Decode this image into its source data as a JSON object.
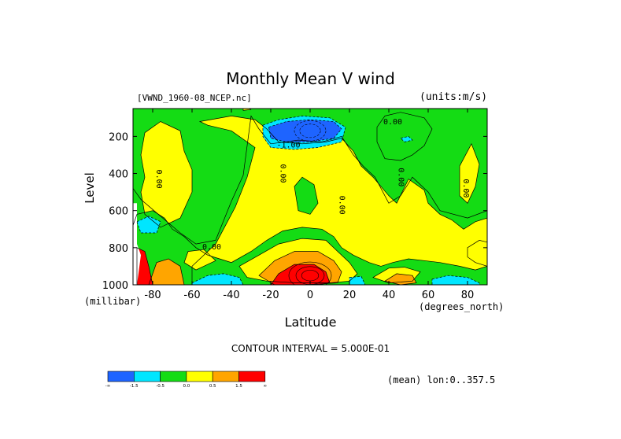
{
  "chart_data": {
    "type": "contour",
    "title": "Monthly Mean V wind",
    "dataset": "[VWND_1960-08_NCEP.nc]",
    "units": "(units:m/s)",
    "xlabel": "Latitude",
    "xunit": "(degrees_north)",
    "ylabel": "Level",
    "yunit": "(millibar)",
    "xlim": [
      -90,
      90
    ],
    "ylim": [
      1000,
      50
    ],
    "x_ticks": [
      "-80",
      "-60",
      "-40",
      "-20",
      "0",
      "20",
      "40",
      "60",
      "80"
    ],
    "x_tick_values": [
      -80,
      -60,
      -40,
      -20,
      0,
      20,
      40,
      60,
      80
    ],
    "y_ticks": [
      "200",
      "400",
      "600",
      "800",
      "1000"
    ],
    "y_tick_values": [
      200,
      400,
      600,
      800,
      1000
    ],
    "contour_interval": "CONTOUR INTERVAL = 5.000E-01",
    "mean_note": "(mean) lon:0..357.5",
    "contour_labels": [
      {
        "text": "0.00",
        "x": 42,
        "y": 135
      },
      {
        "text": "0.00",
        "x": -78,
        "y": 430
      },
      {
        "text": "0.00",
        "x": -15,
        "y": 400
      },
      {
        "text": "0.00",
        "x": 15,
        "y": 570
      },
      {
        "text": "0.00",
        "x": 45,
        "y": 420
      },
      {
        "text": "0.00",
        "x": 78,
        "y": 480
      },
      {
        "text": "0.00",
        "x": -50,
        "y": 810
      },
      {
        "text": "-1.00",
        "x": -11,
        "y": 260
      }
    ],
    "colorbar": {
      "colors": [
        "#1e64ff",
        "#00e6ff",
        "#14dc14",
        "#ffff00",
        "#ffa500",
        "#ff0000"
      ],
      "labels": [
        "-∞",
        "-1.5",
        "-0.5",
        "0.0",
        "0.5",
        "1.5",
        "∞"
      ]
    },
    "regions": [
      {
        "level": "green",
        "points": [
          [
            -90,
            50
          ],
          [
            90,
            50
          ],
          [
            90,
            600
          ],
          [
            80,
            640
          ],
          [
            66,
            600
          ],
          [
            60,
            500
          ],
          [
            52,
            420
          ],
          [
            46,
            520
          ],
          [
            40,
            560
          ],
          [
            33,
            420
          ],
          [
            27,
            360
          ],
          [
            22,
            300
          ],
          [
            16,
            200
          ],
          [
            6,
            230
          ],
          [
            -6,
            220
          ],
          [
            -20,
            240
          ],
          [
            -26,
            160
          ],
          [
            -30,
            90
          ],
          [
            -34,
            410
          ],
          [
            -40,
            550
          ],
          [
            -48,
            760
          ],
          [
            -58,
            780
          ],
          [
            -66,
            720
          ],
          [
            -76,
            630
          ],
          [
            -86,
            540
          ],
          [
            -90,
            480
          ]
        ]
      },
      {
        "level": "yellow",
        "points": [
          [
            -84,
            180
          ],
          [
            -76,
            120
          ],
          [
            -66,
            170
          ],
          [
            -64,
            280
          ],
          [
            -60,
            380
          ],
          [
            -60,
            500
          ],
          [
            -66,
            640
          ],
          [
            -76,
            690
          ],
          [
            -84,
            620
          ],
          [
            -86,
            500
          ],
          [
            -84,
            420
          ],
          [
            -86,
            300
          ]
        ]
      },
      {
        "level": "yellow",
        "points": [
          [
            -56,
            120
          ],
          [
            -40,
            90
          ],
          [
            -28,
            110
          ],
          [
            -22,
            160
          ],
          [
            -16,
            230
          ],
          [
            -4,
            240
          ],
          [
            8,
            230
          ],
          [
            16,
            210
          ],
          [
            22,
            280
          ],
          [
            26,
            360
          ],
          [
            32,
            420
          ],
          [
            40,
            520
          ],
          [
            44,
            560
          ],
          [
            50,
            430
          ],
          [
            58,
            490
          ],
          [
            60,
            560
          ],
          [
            66,
            620
          ],
          [
            72,
            650
          ],
          [
            78,
            700
          ],
          [
            84,
            660
          ],
          [
            90,
            640
          ],
          [
            90,
            1000
          ],
          [
            -60,
            1000
          ],
          [
            -60,
            900
          ],
          [
            -48,
            780
          ],
          [
            -38,
            580
          ],
          [
            -32,
            420
          ],
          [
            -28,
            260
          ],
          [
            -40,
            170
          ],
          [
            -52,
            140
          ]
        ]
      },
      {
        "level": "yellow",
        "points": [
          [
            76,
            360
          ],
          [
            82,
            240
          ],
          [
            86,
            350
          ],
          [
            84,
            470
          ],
          [
            80,
            560
          ],
          [
            76,
            520
          ]
        ]
      },
      {
        "level": "yellow",
        "points": [
          [
            -34,
            40
          ],
          [
            -30,
            55
          ],
          [
            -34,
            60
          ]
        ]
      },
      {
        "level": "green",
        "points": [
          [
            -8,
            470
          ],
          [
            -4,
            420
          ],
          [
            2,
            460
          ],
          [
            4,
            560
          ],
          [
            0,
            620
          ],
          [
            -6,
            600
          ]
        ]
      },
      {
        "level": "green",
        "points": [
          [
            38,
            90
          ],
          [
            46,
            70
          ],
          [
            58,
            100
          ],
          [
            62,
            160
          ],
          [
            58,
            250
          ],
          [
            52,
            300
          ],
          [
            46,
            330
          ],
          [
            38,
            320
          ],
          [
            34,
            230
          ],
          [
            34,
            150
          ]
        ]
      },
      {
        "level": "green",
        "points": [
          [
            -88,
            620
          ],
          [
            -80,
            600
          ],
          [
            -74,
            640
          ],
          [
            -70,
            700
          ],
          [
            -64,
            740
          ],
          [
            -58,
            800
          ],
          [
            -52,
            840
          ],
          [
            -46,
            860
          ],
          [
            -40,
            880
          ],
          [
            -30,
            820
          ],
          [
            -22,
            760
          ],
          [
            -14,
            710
          ],
          [
            -4,
            690
          ],
          [
            6,
            700
          ],
          [
            12,
            740
          ],
          [
            16,
            800
          ],
          [
            22,
            840
          ],
          [
            30,
            880
          ],
          [
            36,
            900
          ],
          [
            42,
            880
          ],
          [
            50,
            860
          ],
          [
            58,
            870
          ],
          [
            66,
            880
          ],
          [
            76,
            900
          ],
          [
            84,
            920
          ],
          [
            90,
            900
          ],
          [
            90,
            1000
          ],
          [
            -90,
            1000
          ],
          [
            -90,
            680
          ]
        ]
      },
      {
        "level": "yellow",
        "points": [
          [
            -62,
            820
          ],
          [
            -54,
            810
          ],
          [
            -48,
            870
          ],
          [
            -58,
            920
          ],
          [
            -64,
            880
          ]
        ]
      },
      {
        "level": "yellow",
        "points": [
          [
            -36,
            900
          ],
          [
            -26,
            840
          ],
          [
            -16,
            780
          ],
          [
            -4,
            750
          ],
          [
            8,
            760
          ],
          [
            14,
            820
          ],
          [
            20,
            880
          ],
          [
            24,
            940
          ],
          [
            20,
            980
          ],
          [
            10,
            990
          ],
          [
            -6,
            990
          ],
          [
            -22,
            980
          ],
          [
            -32,
            960
          ]
        ]
      },
      {
        "level": "yellow",
        "points": [
          [
            32,
            960
          ],
          [
            40,
            910
          ],
          [
            48,
            905
          ],
          [
            56,
            930
          ],
          [
            52,
            980
          ],
          [
            40,
            990
          ]
        ]
      },
      {
        "level": "yellow",
        "points": [
          [
            80,
            800
          ],
          [
            86,
            760
          ],
          [
            90,
            770
          ],
          [
            90,
            900
          ],
          [
            84,
            880
          ],
          [
            80,
            850
          ]
        ]
      },
      {
        "level": "orange",
        "points": [
          [
            -26,
            950
          ],
          [
            -18,
            870
          ],
          [
            -8,
            820
          ],
          [
            4,
            820
          ],
          [
            12,
            870
          ],
          [
            16,
            930
          ],
          [
            14,
            990
          ],
          [
            -2,
            1000
          ],
          [
            -18,
            1000
          ]
        ]
      },
      {
        "level": "orange",
        "points": [
          [
            38,
            980
          ],
          [
            44,
            940
          ],
          [
            52,
            950
          ],
          [
            54,
            990
          ],
          [
            46,
            1000
          ]
        ]
      },
      {
        "level": "orange",
        "points": [
          [
            -82,
            1000
          ],
          [
            -78,
            880
          ],
          [
            -72,
            860
          ],
          [
            -66,
            900
          ],
          [
            -64,
            1000
          ]
        ]
      },
      {
        "level": "red",
        "points": [
          [
            -20,
            1000
          ],
          [
            -16,
            940
          ],
          [
            -8,
            890
          ],
          [
            2,
            890
          ],
          [
            8,
            930
          ],
          [
            10,
            990
          ],
          [
            4,
            1000
          ]
        ]
      },
      {
        "level": "red",
        "points": [
          [
            -88,
            800
          ],
          [
            -84,
            820
          ],
          [
            -82,
            900
          ],
          [
            -80,
            1000
          ],
          [
            -88,
            1000
          ]
        ]
      },
      {
        "level": "cyan",
        "points": [
          [
            -60,
            990
          ],
          [
            -52,
            950
          ],
          [
            -44,
            940
          ],
          [
            -36,
            960
          ],
          [
            -34,
            1000
          ],
          [
            -60,
            1000
          ]
        ]
      },
      {
        "level": "cyan",
        "points": [
          [
            20,
            960
          ],
          [
            26,
            955
          ],
          [
            28,
            1000
          ],
          [
            20,
            1000
          ]
        ]
      },
      {
        "level": "cyan",
        "points": [
          [
            62,
            970
          ],
          [
            70,
            950
          ],
          [
            80,
            960
          ],
          [
            86,
            990
          ],
          [
            86,
            1000
          ],
          [
            62,
            1000
          ]
        ]
      },
      {
        "level": "cyan",
        "points": [
          [
            -88,
            660
          ],
          [
            -82,
            630
          ],
          [
            -76,
            660
          ],
          [
            -78,
            720
          ],
          [
            -86,
            720
          ]
        ]
      },
      {
        "level": "cyan",
        "points": [
          [
            -24,
            140
          ],
          [
            -16,
            110
          ],
          [
            -4,
            90
          ],
          [
            10,
            100
          ],
          [
            18,
            150
          ],
          [
            16,
            230
          ],
          [
            4,
            260
          ],
          [
            -8,
            270
          ],
          [
            -20,
            260
          ],
          [
            -24,
            200
          ]
        ]
      },
      {
        "level": "blue",
        "points": [
          [
            -21,
            150
          ],
          [
            -12,
            120
          ],
          [
            0,
            110
          ],
          [
            12,
            120
          ],
          [
            16,
            160
          ],
          [
            12,
            210
          ],
          [
            0,
            230
          ],
          [
            -12,
            230
          ],
          [
            -20,
            210
          ]
        ]
      },
      {
        "level": "cyan",
        "points": [
          [
            46,
            210
          ],
          [
            50,
            200
          ],
          [
            52,
            220
          ],
          [
            48,
            230
          ]
        ]
      },
      {
        "level": "white",
        "points": [
          [
            -90,
            560
          ],
          [
            -88,
            560
          ],
          [
            -88,
            780
          ],
          [
            -86,
            840
          ],
          [
            -88,
            1000
          ],
          [
            -90,
            1000
          ]
        ]
      }
    ]
  }
}
